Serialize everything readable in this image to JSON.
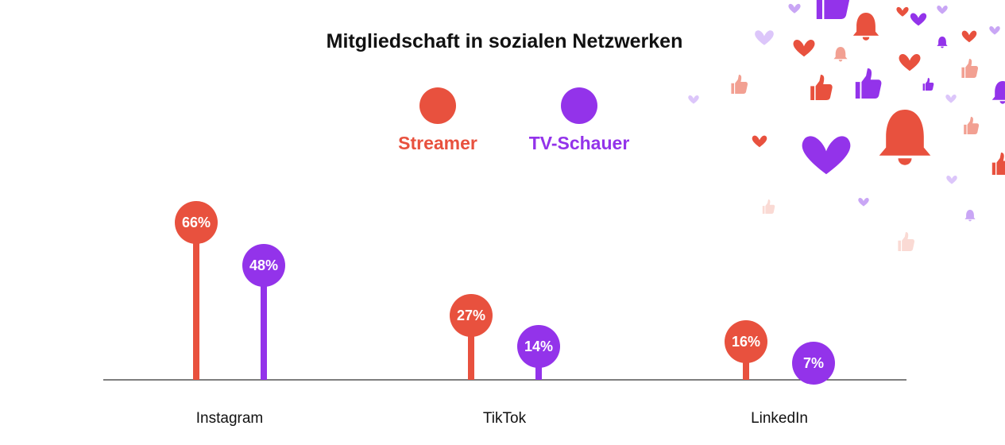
{
  "chart_data": {
    "type": "lollipop",
    "title": "Mitgliedschaft in sozialen Netzwerken",
    "categories": [
      "Instagram",
      "TikTok",
      "LinkedIn"
    ],
    "series": [
      {
        "name": "Streamer",
        "color": "#e8513e",
        "values": [
          66,
          27,
          16
        ],
        "labels": [
          "66%",
          "27%",
          "16%"
        ]
      },
      {
        "name": "TV-Schauer",
        "color": "#9333ea",
        "values": [
          48,
          14,
          7
        ],
        "labels": [
          "48%",
          "14%",
          "7%"
        ]
      }
    ],
    "ylim": [
      0,
      100
    ],
    "grid": false,
    "legend_position": "top-center",
    "decoration_icons": [
      "heart-icon",
      "thumbs-up-icon",
      "bell-icon"
    ]
  }
}
